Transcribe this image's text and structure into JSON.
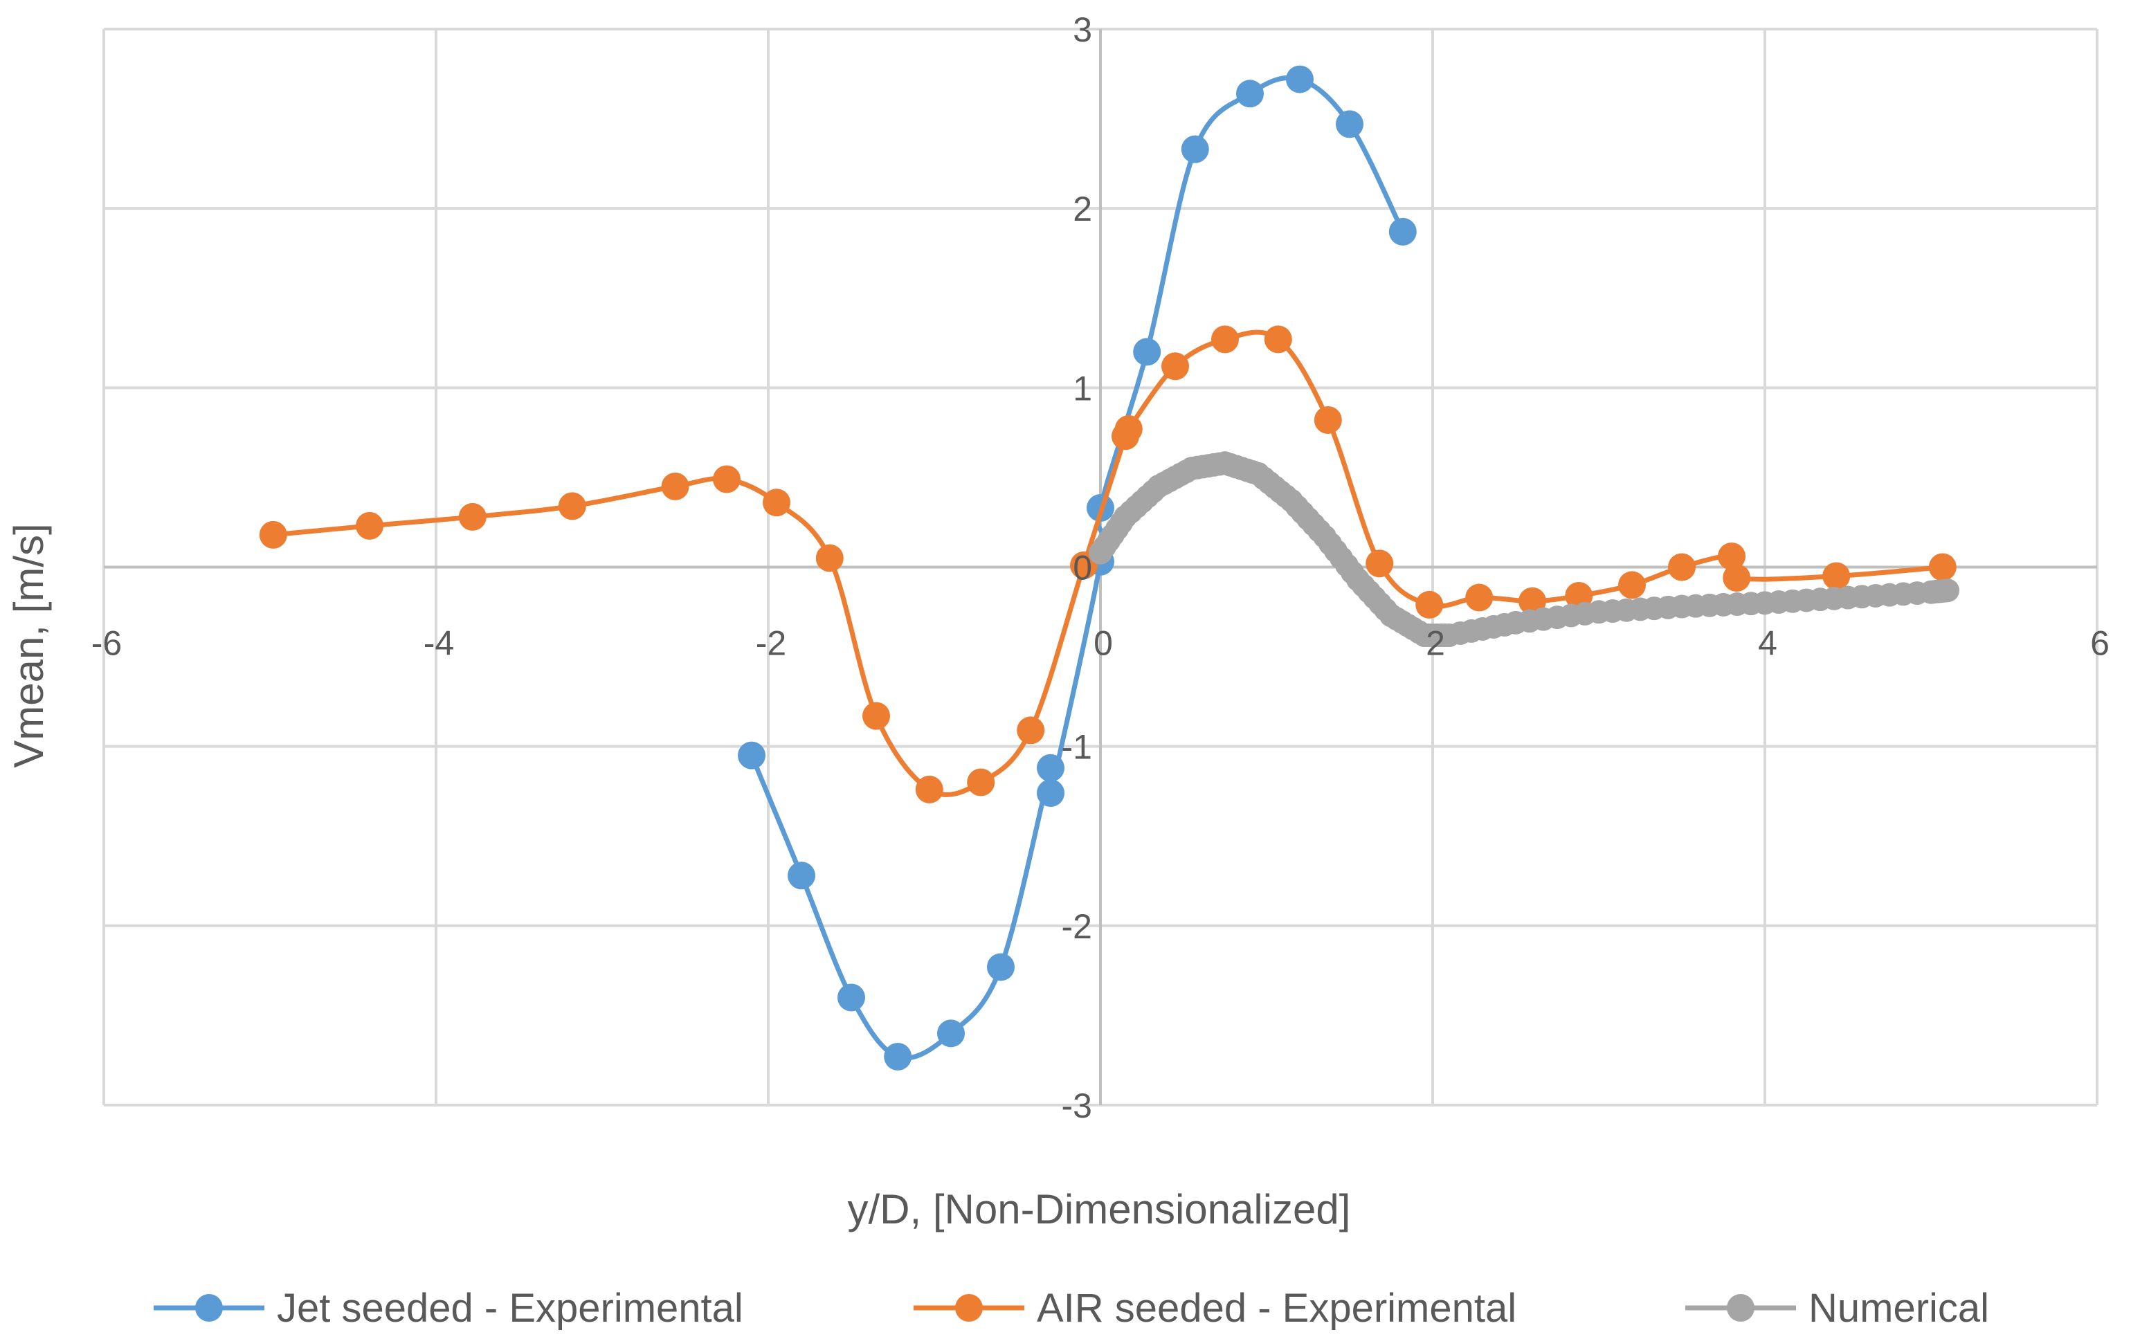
{
  "chart_data": {
    "type": "scatter",
    "title": "",
    "xlabel": "y/D, [Non-Dimensionalized]",
    "ylabel": "Vmean, [m/s]",
    "xlim": [
      -6,
      6
    ],
    "ylim": [
      -3,
      3
    ],
    "xticks": [
      -6,
      -4,
      -2,
      0,
      2,
      4,
      6
    ],
    "yticks": [
      -3,
      -2,
      -1,
      0,
      1,
      2,
      3
    ],
    "xtick_labels": [
      "-6",
      "-4",
      "-2",
      "0",
      "2",
      "4",
      "6"
    ],
    "ytick_labels": [
      "-3",
      "-2",
      "-1",
      "0",
      "1",
      "2",
      "3"
    ],
    "grid": true,
    "legend_position": "bottom",
    "series": [
      {
        "name": "Jet seeded - Experimental",
        "color": "#5b9bd5",
        "smooth": true,
        "x": [
          -2.1,
          -1.8,
          -1.5,
          -1.22,
          -0.9,
          -0.6,
          -0.3,
          -0.3,
          0.0,
          0.0,
          0.28,
          0.57,
          0.9,
          1.2,
          1.5,
          1.82
        ],
        "y": [
          -1.05,
          -1.72,
          -2.4,
          -2.73,
          -2.6,
          -2.23,
          -1.12,
          -1.26,
          0.03,
          0.33,
          1.2,
          2.33,
          2.64,
          2.72,
          2.47,
          1.87
        ]
      },
      {
        "name": "AIR seeded - Experimental",
        "color": "#ed7d31",
        "smooth": true,
        "x": [
          -4.98,
          -4.4,
          -3.78,
          -3.18,
          -2.56,
          -2.25,
          -1.95,
          -1.63,
          -1.35,
          -1.03,
          -0.72,
          -0.42,
          -0.1,
          0.15,
          0.17,
          0.45,
          0.75,
          1.07,
          1.37,
          1.68,
          1.98,
          2.28,
          2.6,
          2.88,
          3.2,
          3.5,
          3.8,
          3.83,
          4.43,
          5.07
        ],
        "y": [
          0.18,
          0.23,
          0.28,
          0.34,
          0.45,
          0.49,
          0.36,
          0.05,
          -0.83,
          -1.24,
          -1.2,
          -0.91,
          0.01,
          0.73,
          0.77,
          1.12,
          1.27,
          1.27,
          0.82,
          0.02,
          -0.21,
          -0.17,
          -0.19,
          -0.16,
          -0.1,
          0.0,
          0.06,
          -0.06,
          -0.05,
          0.0
        ]
      },
      {
        "name": "Numerical",
        "color": "#a5a5a5",
        "smooth": false,
        "points_per_segment": 6,
        "x": [
          0.0,
          0.15,
          0.35,
          0.55,
          0.75,
          0.95,
          1.15,
          1.35,
          1.55,
          1.75,
          1.95,
          2.1,
          2.5,
          3.0,
          3.5,
          4.0,
          4.5,
          5.0,
          5.1
        ],
        "y": [
          0.08,
          0.28,
          0.45,
          0.55,
          0.58,
          0.52,
          0.37,
          0.17,
          -0.07,
          -0.27,
          -0.38,
          -0.38,
          -0.31,
          -0.25,
          -0.22,
          -0.2,
          -0.17,
          -0.14,
          -0.13
        ]
      }
    ]
  }
}
